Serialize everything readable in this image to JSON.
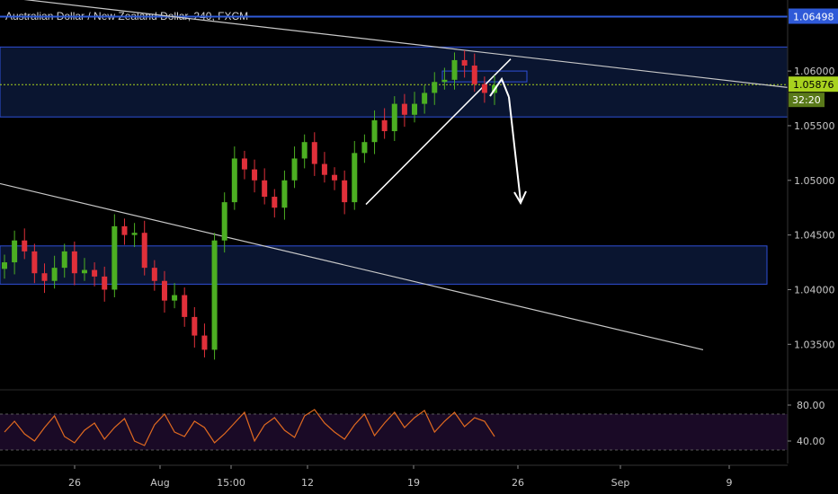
{
  "header": {
    "title": "Australian Dollar / New Zealand Dollar, 240, FXCM"
  },
  "price_axis": {
    "ticks": [
      "1.06000",
      "1.05500",
      "1.05000",
      "1.04500",
      "1.04000",
      "1.03500"
    ],
    "tag_resistance": "1.06498",
    "tag_last": "1.05876",
    "tag_countdown": "32:20"
  },
  "rsi_axis": {
    "ticks": [
      "80.00",
      "40.00"
    ]
  },
  "time_axis": {
    "ticks": [
      "26",
      "Aug",
      "15:00",
      "12",
      "19",
      "26",
      "Sep",
      "9"
    ]
  },
  "colors": {
    "background": "#000000",
    "up": "#4caf22",
    "down": "#e0303a",
    "zone_border": "#2f4fd8",
    "zone_fill": "#0a1530",
    "resistance": "#2f5ad8",
    "last_price": "#a8d21e",
    "rsi_line": "#e06a20",
    "rsi_band": "#1a0a26",
    "trendline": "#c8c8c8"
  },
  "chart_data": [
    {
      "type": "line",
      "title": "Australian Dollar / New Zealand Dollar, 240, FXCM",
      "subtitle": "",
      "xlabel": "",
      "ylabel": "",
      "ylim": [
        1.031,
        1.0665
      ],
      "x_ticks": [
        "26",
        "Aug",
        "15:00",
        "12",
        "19",
        "26",
        "Sep",
        "9"
      ],
      "y_ticks": [
        1.06,
        1.055,
        1.05,
        1.045,
        1.04,
        1.035
      ],
      "series": [
        {
          "values": [
            1.0425,
            1.0445,
            1.0435,
            1.0415,
            1.0408,
            1.042,
            1.0435,
            1.0415,
            1.0418,
            1.0412,
            1.04,
            1.0458,
            1.045,
            1.0452,
            1.042,
            1.0408,
            1.039,
            1.0395,
            1.0375,
            1.0358,
            1.0345,
            1.0445,
            1.048,
            1.052,
            1.051,
            1.05,
            1.0485,
            1.0475,
            1.05,
            1.052,
            1.0535,
            1.0515,
            1.0505,
            1.05,
            1.048,
            1.0525,
            1.0535,
            1.0555,
            1.0545,
            1.057,
            1.056,
            1.057,
            1.058,
            1.059,
            1.0592,
            1.061,
            1.0605,
            1.0588,
            1.058,
            1.0587
          ]
        }
      ],
      "annotations": {
        "resistance_level": 1.06498,
        "last_price": 1.05876,
        "upper_zone": [
          1.0558,
          1.0622
        ],
        "lower_zone": [
          1.0405,
          1.044
        ]
      }
    },
    {
      "type": "line",
      "title": "",
      "xlabel": "",
      "ylabel": "",
      "ylim": [
        15,
        95
      ],
      "y_ticks": [
        80,
        40
      ],
      "band": [
        30,
        70
      ],
      "series": [
        {
          "values": [
            50,
            62,
            48,
            40,
            55,
            68,
            45,
            38,
            52,
            60,
            42,
            55,
            65,
            40,
            35,
            58,
            70,
            50,
            45,
            62,
            55,
            38,
            48,
            60,
            72,
            40,
            58,
            66,
            52,
            44,
            68,
            75,
            60,
            50,
            42,
            58,
            70,
            46,
            60,
            72,
            55,
            66,
            74,
            50,
            62,
            72,
            56,
            66,
            62,
            45
          ]
        }
      ]
    }
  ]
}
